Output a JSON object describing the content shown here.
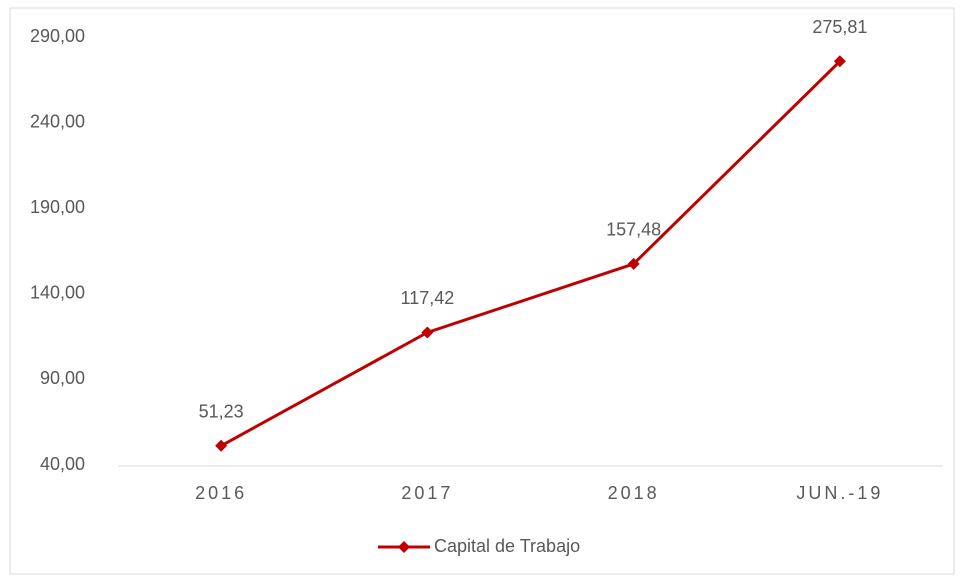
{
  "chart_data": {
    "type": "line",
    "categories": [
      "2016",
      "2017",
      "2018",
      "JUN.-19"
    ],
    "series": [
      {
        "name": "Capital de Trabajo",
        "color": "#c00000",
        "values": [
          51.23,
          117.42,
          157.48,
          275.81
        ],
        "value_labels": [
          "51,23",
          "117,42",
          "157,48",
          "275,81"
        ]
      }
    ],
    "ylim": [
      40,
      290
    ],
    "yticks": [
      {
        "value": 40,
        "label": "40,00"
      },
      {
        "value": 90,
        "label": "90,00"
      },
      {
        "value": 140,
        "label": "140,00"
      },
      {
        "value": 190,
        "label": "190,00"
      },
      {
        "value": 240,
        "label": "240,00"
      },
      {
        "value": 290,
        "label": "290,00"
      }
    ],
    "grid": false,
    "legend": "bottom"
  }
}
